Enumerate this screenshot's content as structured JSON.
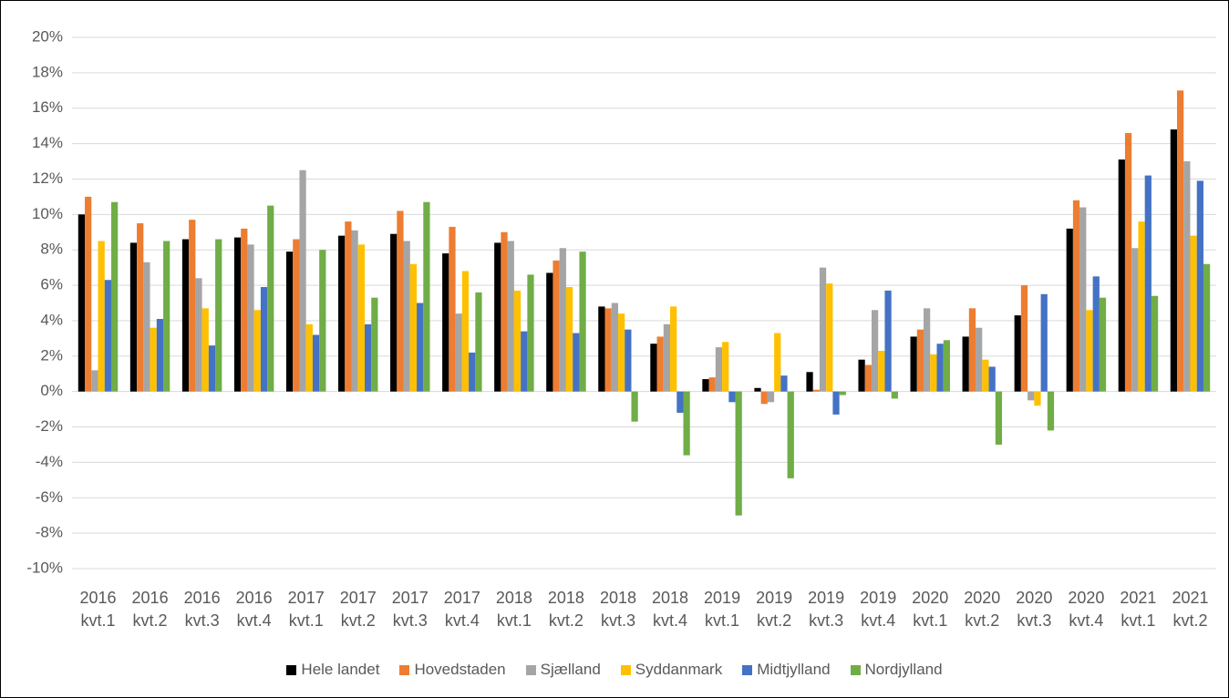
{
  "chart_data": {
    "type": "bar",
    "categories": [
      "2016 kvt.1",
      "2016 kvt.2",
      "2016 kvt.3",
      "2016 kvt.4",
      "2017 kvt.1",
      "2017 kvt.2",
      "2017 kvt.3",
      "2017 kvt.4",
      "2018 kvt.1",
      "2018 kvt.2",
      "2018 kvt.3",
      "2018 kvt.4",
      "2019 kvt.1",
      "2019 kvt.2",
      "2019 kvt.3",
      "2019 kvt.4",
      "2020 kvt.1",
      "2020 kvt.2",
      "2020 kvt.3",
      "2020 kvt.4",
      "2021 kvt.1",
      "2021 kvt.2"
    ],
    "series": [
      {
        "name": "Hele landet",
        "color": "#000000",
        "values": [
          10.0,
          8.4,
          8.6,
          8.7,
          7.9,
          8.8,
          8.9,
          7.8,
          8.4,
          6.7,
          4.8,
          2.7,
          0.7,
          0.2,
          1.1,
          1.8,
          3.1,
          3.1,
          4.3,
          9.2,
          13.1,
          14.8
        ]
      },
      {
        "name": "Hovedstaden",
        "color": "#ed7d31",
        "values": [
          11.0,
          9.5,
          9.7,
          9.2,
          8.6,
          9.6,
          10.2,
          9.3,
          9.0,
          7.4,
          4.7,
          3.1,
          0.8,
          -0.7,
          0.1,
          1.5,
          3.5,
          4.7,
          6.0,
          10.8,
          14.6,
          17.0
        ]
      },
      {
        "name": "Sjælland",
        "color": "#a5a5a5",
        "values": [
          1.2,
          7.3,
          6.4,
          8.3,
          12.5,
          9.1,
          8.5,
          4.4,
          8.5,
          8.1,
          5.0,
          3.8,
          2.5,
          -0.6,
          7.0,
          4.6,
          4.7,
          3.6,
          -0.5,
          10.4,
          8.1,
          13.0
        ]
      },
      {
        "name": "Syddanmark",
        "color": "#ffc000",
        "values": [
          8.5,
          3.6,
          4.7,
          4.6,
          3.8,
          8.3,
          7.2,
          6.8,
          5.7,
          5.9,
          4.4,
          4.8,
          2.8,
          3.3,
          6.1,
          2.3,
          2.1,
          1.8,
          -0.8,
          4.6,
          9.6,
          8.8
        ]
      },
      {
        "name": "Midtjylland",
        "color": "#4472c4",
        "values": [
          6.3,
          4.1,
          2.6,
          5.9,
          3.2,
          3.8,
          5.0,
          2.2,
          3.4,
          3.3,
          3.5,
          -1.2,
          -0.6,
          0.9,
          -1.3,
          5.7,
          2.7,
          1.4,
          5.5,
          6.5,
          12.2,
          11.9
        ]
      },
      {
        "name": "Nordjylland",
        "color": "#70ad47",
        "values": [
          10.7,
          8.5,
          8.6,
          10.5,
          8.0,
          5.3,
          10.7,
          5.6,
          6.6,
          7.9,
          -1.7,
          -3.6,
          -7.0,
          -4.9,
          -0.2,
          -0.4,
          2.9,
          -3.0,
          -2.2,
          5.3,
          5.4,
          7.2
        ]
      }
    ],
    "ylim": [
      -10,
      20
    ],
    "yticks": [
      {
        "value": -10,
        "label": "-10%"
      },
      {
        "value": -8,
        "label": "-8%"
      },
      {
        "value": -6,
        "label": "-6%"
      },
      {
        "value": -4,
        "label": "-4%"
      },
      {
        "value": -2,
        "label": "-2%"
      },
      {
        "value": 0,
        "label": "0%"
      },
      {
        "value": 2,
        "label": "2%"
      },
      {
        "value": 4,
        "label": "4%"
      },
      {
        "value": 6,
        "label": "6%"
      },
      {
        "value": 8,
        "label": "8%"
      },
      {
        "value": 10,
        "label": "10%"
      },
      {
        "value": 12,
        "label": "12%"
      },
      {
        "value": 14,
        "label": "14%"
      },
      {
        "value": 16,
        "label": "16%"
      },
      {
        "value": 18,
        "label": "18%"
      },
      {
        "value": 20,
        "label": "20%"
      }
    ],
    "grid": true
  }
}
